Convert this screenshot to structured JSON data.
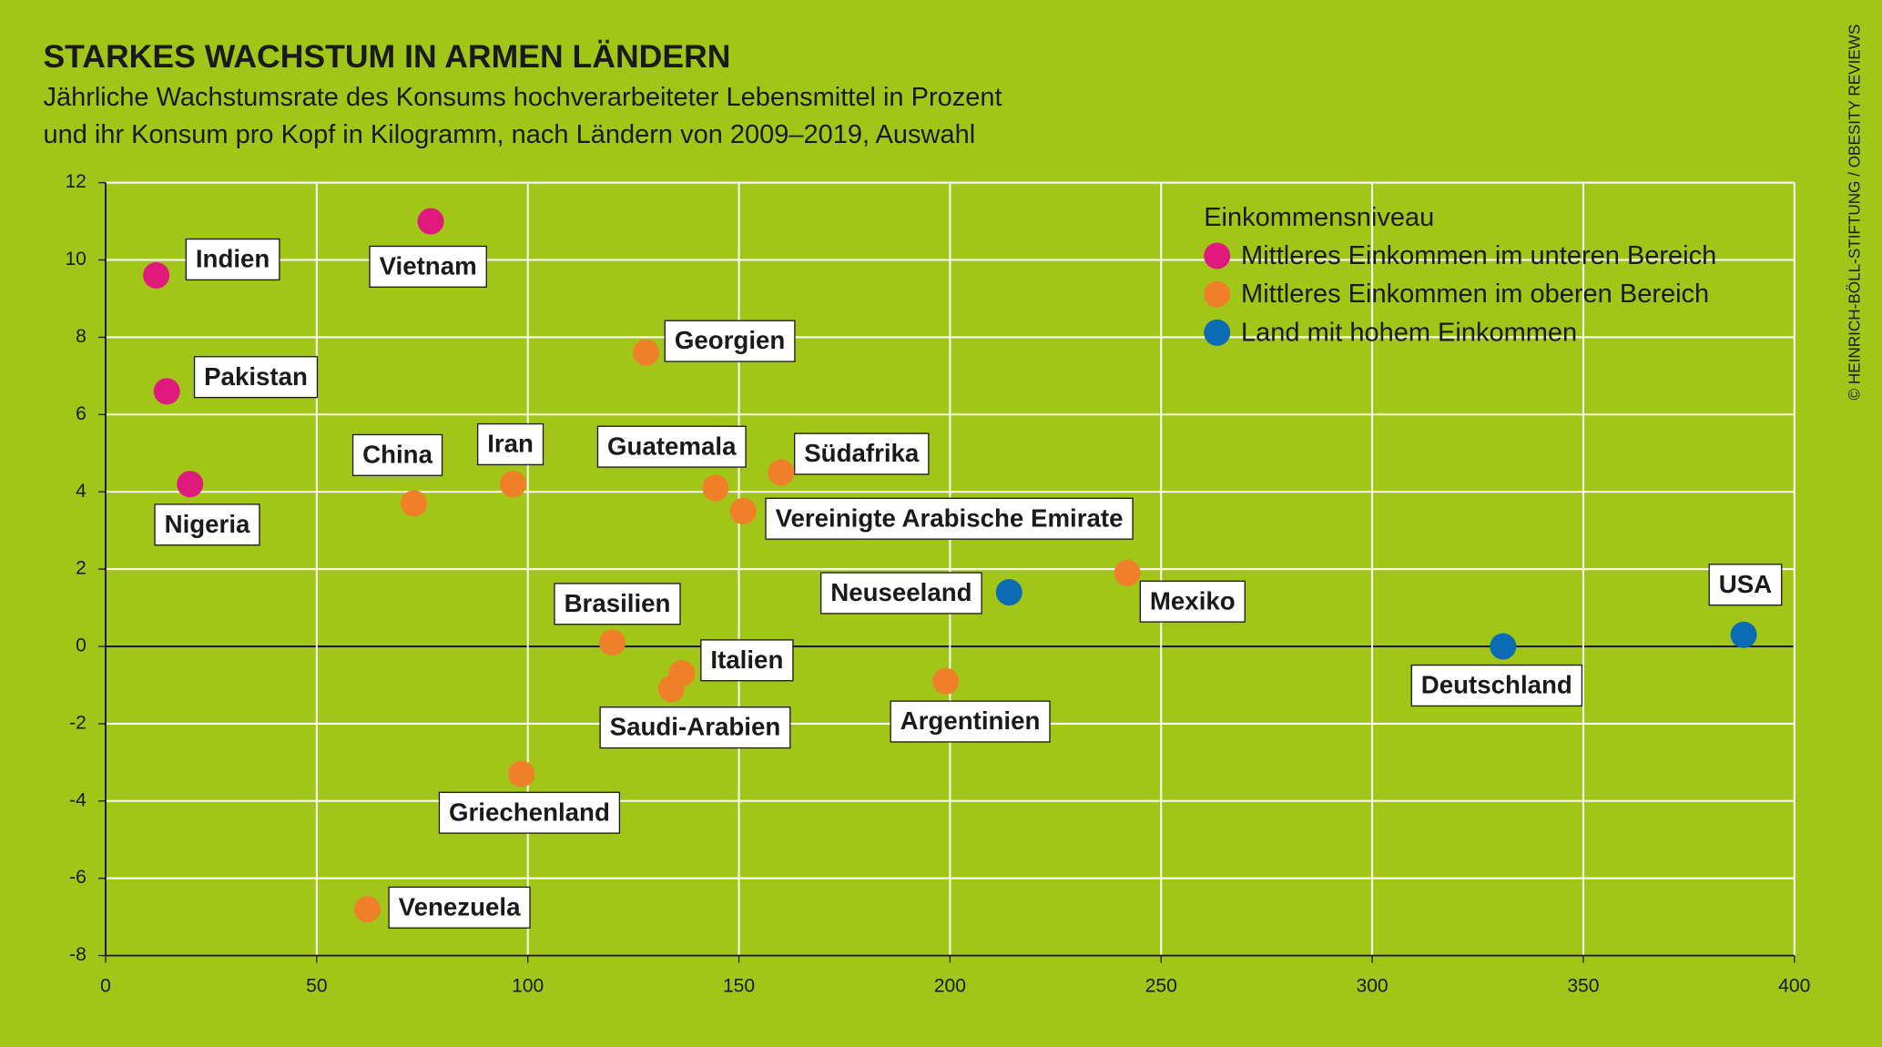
{
  "chart_data": {
    "type": "scatter",
    "title": "STARKES WACHSTUM IN ARMEN LÄNDERN",
    "subtitle": [
      "Jährliche Wachstumsrate des Konsums hochverarbeiteter Lebensmittel in Prozent",
      "und ihr Konsum pro Kopf in Kilogramm, nach Ländern von 2009–2019, Auswahl"
    ],
    "source": "© HEINRICH-BÖLL-STIFTUNG / OBESITY REVIEWS",
    "legend_title": "Einkommensniveau",
    "xlim": [
      0,
      400
    ],
    "xticks": [
      0,
      50,
      100,
      150,
      200,
      250,
      300,
      350,
      400
    ],
    "ylim": [
      -8,
      12
    ],
    "yticks": [
      -8,
      -6,
      -4,
      -2,
      0,
      2,
      4,
      6,
      8,
      10,
      12
    ],
    "grid": true,
    "series": [
      {
        "name": "Mittleres Einkommen im unteren Bereich",
        "color": "#e0197d",
        "labels": [
          "Indien",
          "Vietnam",
          "Pakistan",
          "Nigeria"
        ],
        "x": [
          12,
          77,
          14.5,
          20
        ],
        "values": [
          9.6,
          11.0,
          6.6,
          4.2
        ]
      },
      {
        "name": "Mittleres Einkommen im oberen Bereich",
        "color": "#f07f2a",
        "labels": [
          "China",
          "Iran",
          "Georgien",
          "Guatemala",
          "Südafrika",
          "Vereinigte Arabische Emirate",
          "Mexiko",
          "Brasilien",
          "Italien",
          "Saudi-Arabien",
          "Argentinien",
          "Griechenland",
          "Venezuela"
        ],
        "x": [
          73,
          96.5,
          128,
          144.5,
          160,
          151,
          242,
          120,
          136.5,
          134,
          199,
          98.5,
          62
        ],
        "values": [
          3.7,
          4.2,
          7.6,
          4.1,
          4.5,
          3.5,
          1.9,
          0.1,
          -0.7,
          -1.1,
          -0.9,
          -3.3,
          -6.8
        ]
      },
      {
        "name": "Land mit hohem Einkommen",
        "color": "#0b6bb5",
        "labels": [
          "Neuseeland",
          "Deutschland",
          "USA"
        ],
        "x": [
          214,
          331,
          388
        ],
        "values": [
          1.4,
          0,
          0.3
        ]
      }
    ]
  }
}
